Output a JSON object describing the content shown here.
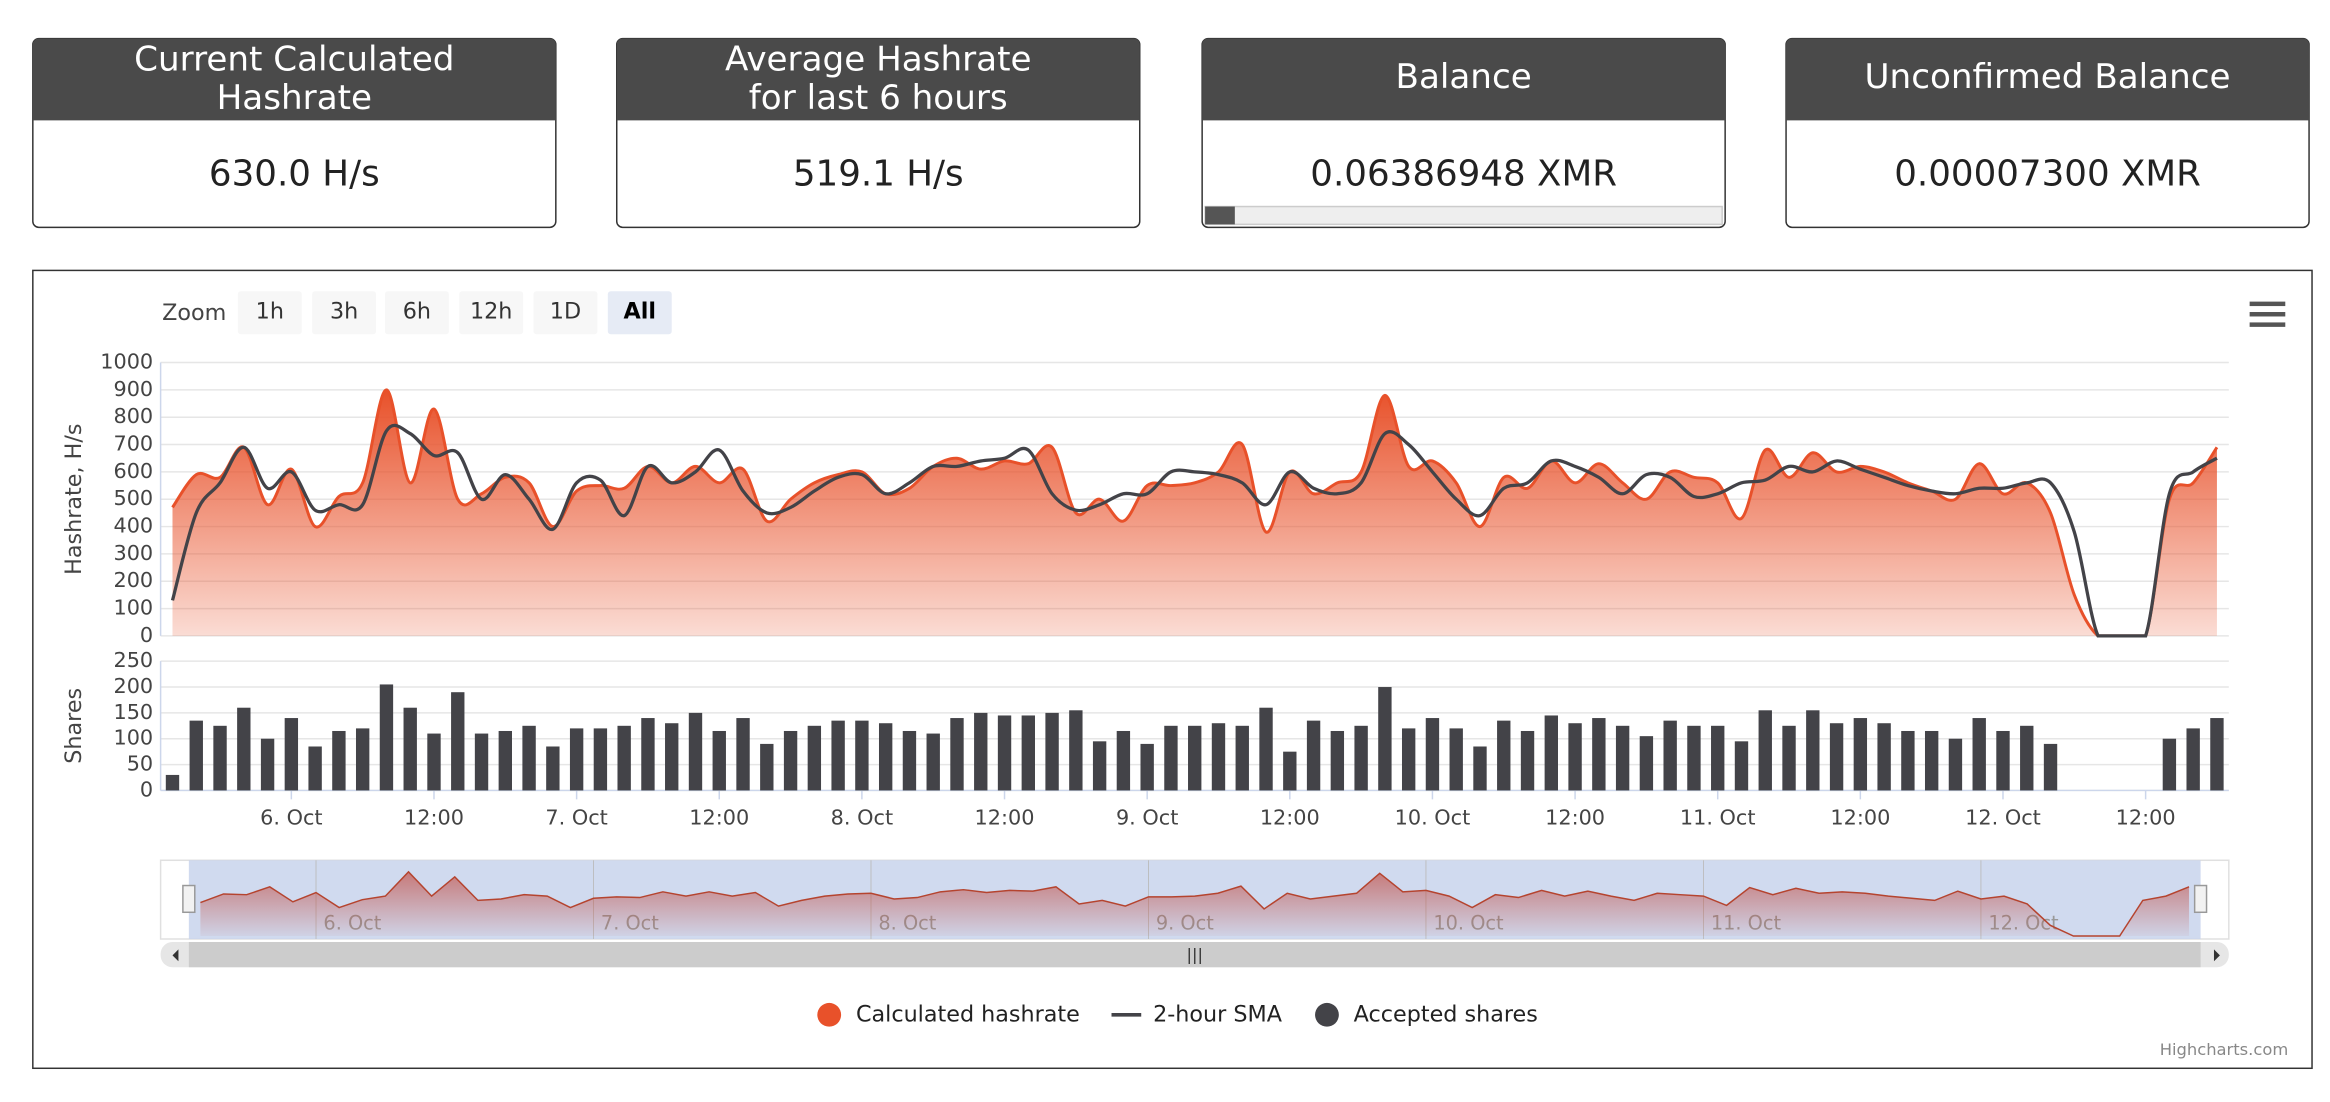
{
  "cards": [
    {
      "title_lines": [
        "Current Calculated",
        "Hashrate"
      ],
      "value": "630.0 H/s"
    },
    {
      "title_lines": [
        "Average Hashrate",
        "for last 6 hours"
      ],
      "value": "519.1 H/s"
    },
    {
      "title_lines": [
        "Balance"
      ],
      "value": "0.06386948 XMR"
    },
    {
      "title_lines": [
        "Unconfirmed Balance"
      ],
      "value": "0.00007300 XMR"
    }
  ],
  "zoom": {
    "label": "Zoom",
    "buttons": [
      "1h",
      "3h",
      "6h",
      "12h",
      "1D",
      "All"
    ],
    "selected": "All"
  },
  "credit": "Highcharts.com",
  "chart_data": {
    "type": "line",
    "x": [
      "5 Oct 14:00",
      "5 Oct 16:00",
      "5 Oct 18:00",
      "5 Oct 20:00",
      "5 Oct 22:00",
      "6 Oct 00:00",
      "6 Oct 02:00",
      "6 Oct 04:00",
      "6 Oct 06:00",
      "6 Oct 08:00",
      "6 Oct 10:00",
      "6 Oct 12:00",
      "6 Oct 14:00",
      "6 Oct 16:00",
      "6 Oct 18:00",
      "6 Oct 20:00",
      "6 Oct 22:00",
      "7 Oct 00:00",
      "7 Oct 02:00",
      "7 Oct 04:00",
      "7 Oct 06:00",
      "7 Oct 08:00",
      "7 Oct 10:00",
      "7 Oct 12:00",
      "7 Oct 14:00",
      "7 Oct 16:00",
      "7 Oct 18:00",
      "7 Oct 20:00",
      "7 Oct 22:00",
      "8 Oct 00:00",
      "8 Oct 02:00",
      "8 Oct 04:00",
      "8 Oct 06:00",
      "8 Oct 08:00",
      "8 Oct 10:00",
      "8 Oct 12:00",
      "8 Oct 14:00",
      "8 Oct 16:00",
      "8 Oct 18:00",
      "8 Oct 20:00",
      "8 Oct 22:00",
      "9 Oct 00:00",
      "9 Oct 02:00",
      "9 Oct 04:00",
      "9 Oct 06:00",
      "9 Oct 08:00",
      "9 Oct 10:00",
      "9 Oct 12:00",
      "9 Oct 14:00",
      "9 Oct 16:00",
      "9 Oct 18:00",
      "9 Oct 20:00",
      "9 Oct 22:00",
      "10 Oct 00:00",
      "10 Oct 02:00",
      "10 Oct 04:00",
      "10 Oct 06:00",
      "10 Oct 08:00",
      "10 Oct 10:00",
      "10 Oct 12:00",
      "10 Oct 14:00",
      "10 Oct 16:00",
      "10 Oct 18:00",
      "10 Oct 20:00",
      "10 Oct 22:00",
      "11 Oct 00:00",
      "11 Oct 02:00",
      "11 Oct 04:00",
      "11 Oct 06:00",
      "11 Oct 08:00",
      "11 Oct 10:00",
      "11 Oct 12:00",
      "11 Oct 14:00",
      "11 Oct 16:00",
      "11 Oct 18:00",
      "11 Oct 20:00",
      "11 Oct 22:00",
      "12 Oct 00:00",
      "12 Oct 02:00",
      "12 Oct 04:00",
      "12 Oct 06:00",
      "12 Oct 08:00",
      "12 Oct 10:00",
      "12 Oct 12:00",
      "12 Oct 14:00",
      "12 Oct 16:00",
      "12 Oct 18:00"
    ],
    "xlim": [
      "5 Oct 13:00",
      "12 Oct 19:00"
    ],
    "xticks": [
      {
        "value": "6 Oct 00:00",
        "label": "6. Oct"
      },
      {
        "value": "6 Oct 12:00",
        "label": "12:00"
      },
      {
        "value": "7 Oct 00:00",
        "label": "7. Oct"
      },
      {
        "value": "7 Oct 12:00",
        "label": "12:00"
      },
      {
        "value": "8 Oct 00:00",
        "label": "8. Oct"
      },
      {
        "value": "8 Oct 12:00",
        "label": "12:00"
      },
      {
        "value": "9 Oct 00:00",
        "label": "9. Oct"
      },
      {
        "value": "9 Oct 12:00",
        "label": "12:00"
      },
      {
        "value": "10 Oct 00:00",
        "label": "10. Oct"
      },
      {
        "value": "10 Oct 12:00",
        "label": "12:00"
      },
      {
        "value": "11 Oct 00:00",
        "label": "11. Oct"
      },
      {
        "value": "11 Oct 12:00",
        "label": "12:00"
      },
      {
        "value": "12 Oct 00:00",
        "label": "12. Oct"
      },
      {
        "value": "12 Oct 12:00",
        "label": "12:00"
      }
    ],
    "y_label": "Hashrate, H/s",
    "ylim": [
      0,
      1000
    ],
    "yticks": [
      0,
      100,
      200,
      300,
      400,
      500,
      600,
      700,
      800,
      900,
      1000
    ],
    "y2_label": "Shares",
    "y2lim": [
      0,
      250
    ],
    "y2ticks": [
      0,
      50,
      100,
      150,
      200,
      250
    ],
    "grid": true,
    "series": [
      {
        "name": "Calculated hashrate",
        "type": "area",
        "color": "#e8512a",
        "values": [
          470,
          590,
          580,
          690,
          480,
          610,
          400,
          510,
          560,
          900,
          560,
          830,
          500,
          520,
          580,
          560,
          400,
          530,
          550,
          540,
          620,
          560,
          620,
          560,
          610,
          420,
          500,
          560,
          590,
          600,
          520,
          540,
          620,
          650,
          610,
          640,
          630,
          690,
          450,
          500,
          420,
          550,
          550,
          560,
          600,
          700,
          380,
          600,
          520,
          560,
          600,
          880,
          620,
          640,
          560,
          400,
          580,
          540,
          640,
          560,
          630,
          560,
          500,
          600,
          580,
          560,
          430,
          680,
          580,
          670,
          600,
          620,
          600,
          560,
          530,
          500,
          630,
          520,
          560,
          450,
          150,
          0,
          0,
          0,
          500,
          560,
          690
        ]
      },
      {
        "name": "2-hour SMA",
        "type": "line",
        "color": "#434348",
        "values": [
          130,
          450,
          560,
          690,
          540,
          600,
          460,
          480,
          480,
          750,
          740,
          660,
          670,
          500,
          590,
          500,
          390,
          560,
          570,
          440,
          620,
          560,
          600,
          680,
          530,
          450,
          470,
          530,
          580,
          590,
          520,
          560,
          620,
          620,
          640,
          650,
          680,
          520,
          460,
          480,
          520,
          520,
          600,
          600,
          590,
          560,
          480,
          600,
          540,
          520,
          560,
          740,
          700,
          600,
          500,
          440,
          540,
          560,
          640,
          620,
          580,
          520,
          590,
          580,
          510,
          520,
          560,
          570,
          620,
          600,
          640,
          610,
          580,
          550,
          530,
          520,
          540,
          540,
          560,
          560,
          380,
          0,
          0,
          0,
          520,
          600,
          650
        ]
      },
      {
        "name": "Accepted shares",
        "type": "column",
        "axis": "y2",
        "color": "#434348",
        "values": [
          30,
          135,
          125,
          160,
          100,
          140,
          85,
          115,
          120,
          205,
          160,
          110,
          190,
          110,
          115,
          125,
          85,
          120,
          120,
          125,
          140,
          130,
          150,
          115,
          140,
          90,
          115,
          125,
          135,
          135,
          130,
          115,
          110,
          140,
          150,
          145,
          145,
          150,
          155,
          95,
          115,
          90,
          125,
          125,
          130,
          125,
          160,
          75,
          135,
          115,
          125,
          200,
          120,
          140,
          120,
          85,
          135,
          115,
          145,
          130,
          140,
          125,
          105,
          135,
          125,
          125,
          95,
          155,
          125,
          155,
          130,
          140,
          130,
          115,
          115,
          100,
          140,
          115,
          125,
          90,
          null,
          null,
          null,
          null,
          100,
          120,
          140
        ]
      }
    ]
  }
}
